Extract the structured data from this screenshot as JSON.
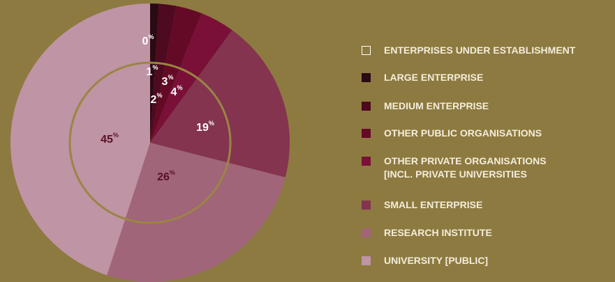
{
  "chart_data": {
    "type": "pie",
    "categories": [
      "ENTERPRISES UNDER ESTABLISHMENT",
      "LARGE ENTERPRISE",
      "MEDIUM ENTERPRISE",
      "OTHER PUBLIC ORGANISATIONS",
      "OTHER PRIVATE ORGANISATIONS\n[INCL. PRIVATE UNIVERSITIES",
      "SMALL ENTERPRISE",
      "RESEARCH INSTITUTE",
      "UNIVERSITY [PUBLIC]"
    ],
    "values": [
      0,
      1,
      2,
      3,
      4,
      19,
      26,
      45
    ],
    "unit": "%",
    "colors": [
      "#ffffff",
      "#2a0a14",
      "#4e0a20",
      "#640a26",
      "#7a1038",
      "#84344f",
      "#a06579",
      "#bf94a5"
    ]
  }
}
